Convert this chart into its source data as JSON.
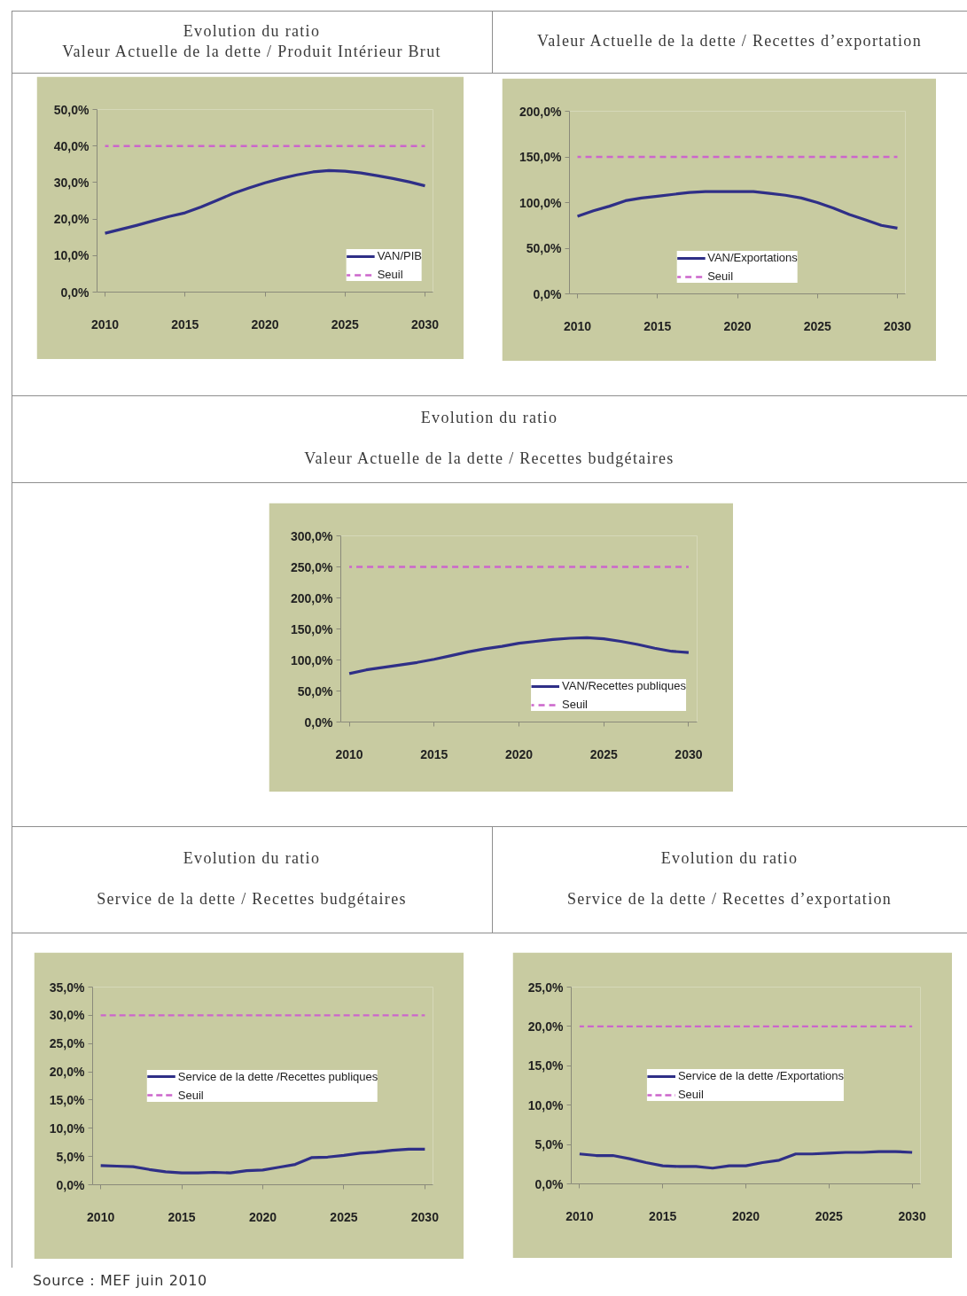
{
  "chart_data": [
    {
      "type": "line",
      "title": "Evolution du ratio",
      "subtitle": "Valeur Actuelle de la dette / Produit Intérieur Brut",
      "x": [
        2010,
        2011,
        2012,
        2013,
        2014,
        2015,
        2016,
        2017,
        2018,
        2019,
        2020,
        2021,
        2022,
        2023,
        2024,
        2025,
        2026,
        2027,
        2028,
        2029,
        2030
      ],
      "xlim": [
        2009.5,
        2030.5
      ],
      "xticks": [
        2010,
        2015,
        2020,
        2025,
        2030
      ],
      "ylim": [
        0,
        50
      ],
      "yticks": [
        {
          "value": 0,
          "label": "0,0%"
        },
        {
          "value": 10,
          "label": "10,0%"
        },
        {
          "value": 20,
          "label": "20,0%"
        },
        {
          "value": 30,
          "label": "30,0%"
        },
        {
          "value": 40,
          "label": "40,0%"
        },
        {
          "value": 50,
          "label": "50,0%"
        }
      ],
      "series": [
        {
          "name": "VAN/PIB",
          "color": "#2f2f87",
          "line_style": "solid",
          "values": [
            16.1,
            17.2,
            18.3,
            19.5,
            20.7,
            21.7,
            23.3,
            25.1,
            27.0,
            28.5,
            29.9,
            31.1,
            32.1,
            32.9,
            33.3,
            33.1,
            32.6,
            31.9,
            31.1,
            30.2,
            29.1
          ]
        },
        {
          "name": "Seuil",
          "color": "#cc66cc",
          "line_style": "dashed",
          "values": [
            40,
            40,
            40,
            40,
            40,
            40,
            40,
            40,
            40,
            40,
            40,
            40,
            40,
            40,
            40,
            40,
            40,
            40,
            40,
            40,
            40
          ]
        }
      ],
      "legend": "bottom right"
    },
    {
      "type": "line",
      "title": "Valeur Actuelle de la dette / Recettes d’exportation",
      "x": [
        2010,
        2011,
        2012,
        2013,
        2014,
        2015,
        2016,
        2017,
        2018,
        2019,
        2020,
        2021,
        2022,
        2023,
        2024,
        2025,
        2026,
        2027,
        2028,
        2029,
        2030
      ],
      "xlim": [
        2009.5,
        2030.5
      ],
      "xticks": [
        2010,
        2015,
        2020,
        2025,
        2030
      ],
      "ylim": [
        0,
        200
      ],
      "yticks": [
        {
          "value": 0,
          "label": "0,0%"
        },
        {
          "value": 50,
          "label": "50,0%"
        },
        {
          "value": 100,
          "label": "100,0%"
        },
        {
          "value": 150,
          "label": "150,0%"
        },
        {
          "value": 200,
          "label": "200,0%"
        }
      ],
      "series": [
        {
          "name": "VAN/Exportations",
          "color": "#2f2f87",
          "line_style": "solid",
          "values": [
            85,
            91,
            96,
            102,
            105,
            107,
            109,
            111,
            112,
            112,
            112,
            112,
            110,
            108,
            105,
            100,
            94,
            87,
            81,
            75,
            72
          ]
        },
        {
          "name": "Seuil",
          "color": "#cc66cc",
          "line_style": "dashed",
          "values": [
            150,
            150,
            150,
            150,
            150,
            150,
            150,
            150,
            150,
            150,
            150,
            150,
            150,
            150,
            150,
            150,
            150,
            150,
            150,
            150,
            150
          ]
        }
      ],
      "legend": "bottom"
    },
    {
      "type": "line",
      "title": "Evolution du ratio",
      "subtitle": "Valeur Actuelle de la dette / Recettes budgétaires",
      "x": [
        2010,
        2011,
        2012,
        2013,
        2014,
        2015,
        2016,
        2017,
        2018,
        2019,
        2020,
        2021,
        2022,
        2023,
        2024,
        2025,
        2026,
        2027,
        2028,
        2029,
        2030
      ],
      "xlim": [
        2009.5,
        2030.5
      ],
      "xticks": [
        2010,
        2015,
        2020,
        2025,
        2030
      ],
      "ylim": [
        0,
        300
      ],
      "yticks": [
        {
          "value": 0,
          "label": "0,0%"
        },
        {
          "value": 50,
          "label": "50,0%"
        },
        {
          "value": 100,
          "label": "100,0%"
        },
        {
          "value": 150,
          "label": "150,0%"
        },
        {
          "value": 200,
          "label": "200,0%"
        },
        {
          "value": 250,
          "label": "250,0%"
        },
        {
          "value": 300,
          "label": "300,0%"
        }
      ],
      "series": [
        {
          "name": "VAN/Recettes publiques",
          "color": "#2f2f87",
          "line_style": "solid",
          "values": [
            78,
            84,
            88,
            92,
            96,
            101,
            107,
            113,
            118,
            122,
            127,
            130,
            133,
            135,
            136,
            134,
            130,
            125,
            119,
            114,
            112
          ]
        },
        {
          "name": "Seuil",
          "color": "#cc66cc",
          "line_style": "dashed",
          "values": [
            250,
            250,
            250,
            250,
            250,
            250,
            250,
            250,
            250,
            250,
            250,
            250,
            250,
            250,
            250,
            250,
            250,
            250,
            250,
            250,
            250
          ]
        }
      ],
      "legend": "bottom right"
    },
    {
      "type": "line",
      "title": "Evolution du ratio",
      "subtitle": "Service de la dette / Recettes budgétaires",
      "x": [
        2010,
        2011,
        2012,
        2013,
        2014,
        2015,
        2016,
        2017,
        2018,
        2019,
        2020,
        2021,
        2022,
        2023,
        2024,
        2025,
        2026,
        2027,
        2028,
        2029,
        2030
      ],
      "xlim": [
        2009.5,
        2030.5
      ],
      "xticks": [
        2010,
        2015,
        2020,
        2025,
        2030
      ],
      "ylim": [
        0,
        35
      ],
      "yticks": [
        {
          "value": 0,
          "label": "0,0%"
        },
        {
          "value": 5,
          "label": "5,0%"
        },
        {
          "value": 10,
          "label": "10,0%"
        },
        {
          "value": 15,
          "label": "15,0%"
        },
        {
          "value": 20,
          "label": "20,0%"
        },
        {
          "value": 25,
          "label": "25,0%"
        },
        {
          "value": 30,
          "label": "30,0%"
        },
        {
          "value": 35,
          "label": "35,0%"
        }
      ],
      "series": [
        {
          "name": "Service de la dette /Recettes publiques",
          "color": "#2f2f87",
          "line_style": "solid",
          "values": [
            3.4,
            3.3,
            3.2,
            2.7,
            2.3,
            2.1,
            2.1,
            2.2,
            2.1,
            2.5,
            2.6,
            3.1,
            3.6,
            4.8,
            4.9,
            5.2,
            5.6,
            5.8,
            6.1,
            6.3,
            6.3
          ]
        },
        {
          "name": "Seuil",
          "color": "#cc66cc",
          "line_style": "dashed",
          "values": [
            30,
            30,
            30,
            30,
            30,
            30,
            30,
            30,
            30,
            30,
            30,
            30,
            30,
            30,
            30,
            30,
            30,
            30,
            30,
            30,
            30
          ]
        }
      ],
      "legend": "center",
      "annotations": [
        "Source : MEF juin 2010"
      ]
    },
    {
      "type": "line",
      "title": "Evolution du ratio",
      "subtitle": "Service de la dette / Recettes d’exportation",
      "x": [
        2010,
        2011,
        2012,
        2013,
        2014,
        2015,
        2016,
        2017,
        2018,
        2019,
        2020,
        2021,
        2022,
        2023,
        2024,
        2025,
        2026,
        2027,
        2028,
        2029,
        2030
      ],
      "xlim": [
        2009.5,
        2030.5
      ],
      "xticks": [
        2010,
        2015,
        2020,
        2025,
        2030
      ],
      "ylim": [
        0,
        25
      ],
      "yticks": [
        {
          "value": 0,
          "label": "0,0%"
        },
        {
          "value": 5,
          "label": "5,0%"
        },
        {
          "value": 10,
          "label": "10,0%"
        },
        {
          "value": 15,
          "label": "15,0%"
        },
        {
          "value": 20,
          "label": "20,0%"
        },
        {
          "value": 25,
          "label": "25,0%"
        }
      ],
      "series": [
        {
          "name": "Service de la dette /Exportations",
          "color": "#2f2f87",
          "line_style": "solid",
          "values": [
            3.8,
            3.6,
            3.6,
            3.2,
            2.7,
            2.3,
            2.2,
            2.2,
            2.0,
            2.3,
            2.3,
            2.7,
            3.0,
            3.8,
            3.8,
            3.9,
            4.0,
            4.0,
            4.1,
            4.1,
            4.0
          ]
        },
        {
          "name": "Seuil",
          "color": "#cc66cc",
          "line_style": "dashed",
          "values": [
            20,
            20,
            20,
            20,
            20,
            20,
            20,
            20,
            20,
            20,
            20,
            20,
            20,
            20,
            20,
            20,
            20,
            20,
            20,
            20,
            20
          ]
        }
      ],
      "legend": "center"
    }
  ]
}
